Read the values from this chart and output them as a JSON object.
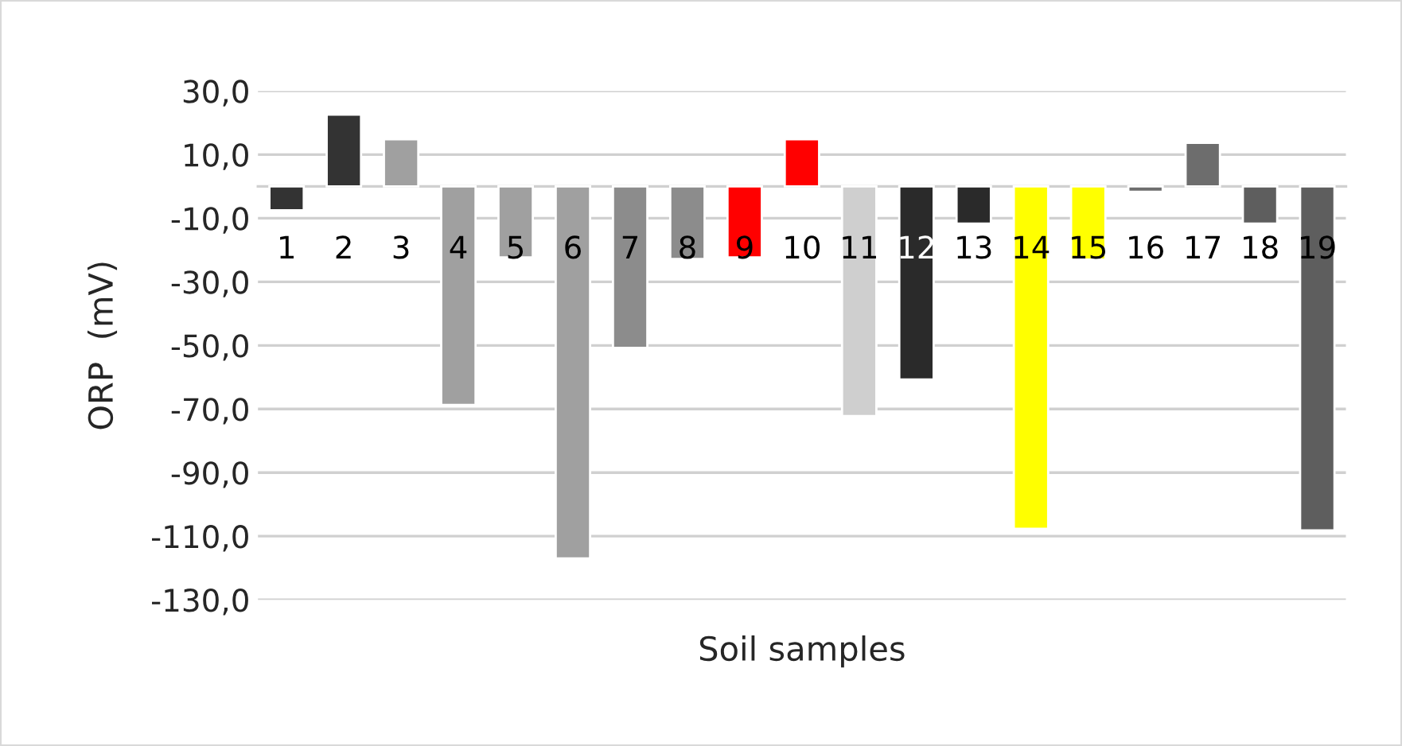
{
  "chart_data": {
    "type": "bar",
    "xlabel": "Soil samples",
    "ylabel": "ORP  (mV)",
    "categories": [
      "1",
      "2",
      "3",
      "4",
      "5",
      "6",
      "7",
      "8",
      "9",
      "10",
      "11",
      "12",
      "13",
      "14",
      "15",
      "16",
      "17",
      "18",
      "19"
    ],
    "values": [
      -7.5,
      22.6,
      14.8,
      -68.7,
      -22.3,
      -117,
      -50.8,
      -22.8,
      -22.3,
      14.8,
      -72.2,
      -60.7,
      -11.7,
      -107.7,
      -23,
      -1.7,
      13.7,
      -11.7,
      -108.2
    ],
    "colors": [
      "#333333",
      "#333333",
      "#a0a0a0",
      "#a0a0a0",
      "#a0a0a0",
      "#a0a0a0",
      "#8c8c8c",
      "#8c8c8c",
      "#ff0000",
      "#ff0000",
      "#cfcfcf",
      "#2a2a2a",
      "#2a2a2a",
      "#ffff00",
      "#ffff00",
      "#6d6d6d",
      "#6d6d6d",
      "#5e5e5e",
      "#5e5e5e"
    ],
    "ylim": [
      -130,
      30
    ],
    "yticks": [
      {
        "value": 30,
        "label": "30,0"
      },
      {
        "value": 10,
        "label": "10,0"
      },
      {
        "value": -10,
        "label": "-10,0"
      },
      {
        "value": -30,
        "label": "-30,0"
      },
      {
        "value": -50,
        "label": "-50,0"
      },
      {
        "value": -70,
        "label": "-70,0"
      },
      {
        "value": -90,
        "label": "-90,0"
      },
      {
        "value": -110,
        "label": "-110,0"
      },
      {
        "value": -130,
        "label": "-130,0"
      }
    ],
    "grid": "y"
  }
}
